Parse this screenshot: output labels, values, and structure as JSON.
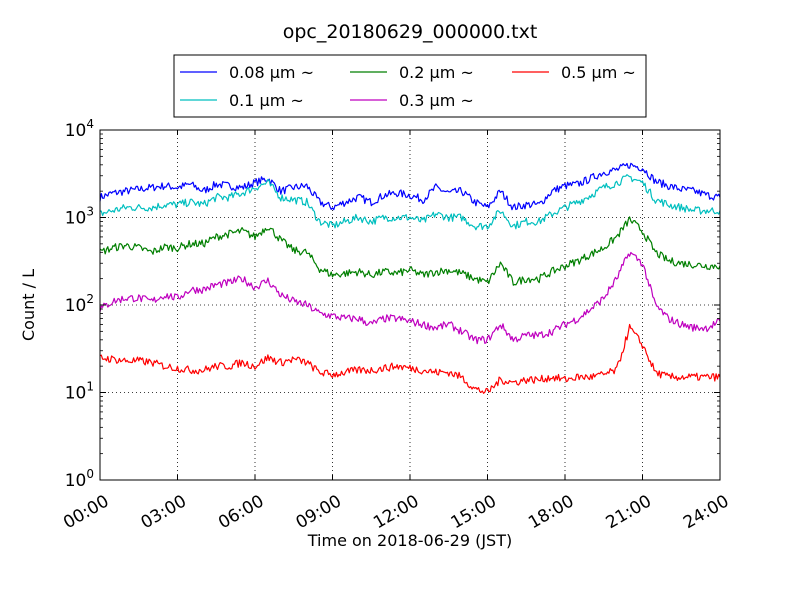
{
  "chart_data": {
    "type": "line",
    "title": "opc_20180629_000000.txt",
    "xlabel": "Time on 2018-06-29 (JST)",
    "ylabel": "Count / L",
    "yscale": "log",
    "xlim": [
      "2018-06-29 00:00",
      "2018-06-30 00:00"
    ],
    "ylim": [
      1,
      10000
    ],
    "grid": true,
    "legend_position": "top-center",
    "x_ticks": [
      "00:00",
      "03:00",
      "06:00",
      "09:00",
      "12:00",
      "15:00",
      "18:00",
      "21:00",
      "24:00"
    ],
    "y_ticks": [
      {
        "value": 1,
        "base": "10",
        "exp": "0"
      },
      {
        "value": 10,
        "base": "10",
        "exp": "1"
      },
      {
        "value": 100,
        "base": "10",
        "exp": "2"
      },
      {
        "value": 1000,
        "base": "10",
        "exp": "3"
      },
      {
        "value": 10000,
        "base": "10",
        "exp": "4"
      }
    ],
    "x": [
      "00:00",
      "00:30",
      "01:00",
      "01:30",
      "02:00",
      "02:30",
      "03:00",
      "03:30",
      "04:00",
      "04:30",
      "05:00",
      "05:30",
      "06:00",
      "06:30",
      "07:00",
      "07:30",
      "08:00",
      "08:30",
      "09:00",
      "09:30",
      "10:00",
      "10:30",
      "11:00",
      "11:30",
      "12:00",
      "12:30",
      "13:00",
      "13:30",
      "14:00",
      "14:30",
      "15:00",
      "15:30",
      "16:00",
      "16:30",
      "17:00",
      "17:30",
      "18:00",
      "18:30",
      "19:00",
      "19:30",
      "20:00",
      "20:30",
      "21:00",
      "21:30",
      "22:00",
      "22:30",
      "23:00",
      "23:30",
      "24:00"
    ],
    "series": [
      {
        "name": "0.08 μm ~",
        "color": "#0000ff",
        "values": [
          1700,
          1900,
          2000,
          2100,
          2200,
          2300,
          2200,
          2400,
          2000,
          2400,
          2300,
          2200,
          2500,
          2800,
          2000,
          2200,
          2300,
          1500,
          1300,
          1500,
          1700,
          1500,
          1800,
          1900,
          1800,
          1600,
          2200,
          1900,
          2000,
          1500,
          1300,
          2000,
          1300,
          1400,
          1400,
          2000,
          2300,
          2400,
          2800,
          3300,
          3500,
          4000,
          3700,
          2600,
          2300,
          2100,
          2000,
          1800,
          1700
        ]
      },
      {
        "name": "0.1 μm ~",
        "color": "#00bfbf",
        "values": [
          1100,
          1200,
          1300,
          1300,
          1300,
          1400,
          1400,
          1500,
          1400,
          1700,
          1700,
          1900,
          2200,
          2500,
          1700,
          1600,
          1500,
          900,
          800,
          900,
          1000,
          900,
          1000,
          1000,
          1000,
          900,
          1100,
          1000,
          1000,
          800,
          800,
          1200,
          800,
          900,
          900,
          1100,
          1300,
          1500,
          1800,
          2200,
          2500,
          2900,
          2500,
          1600,
          1400,
          1300,
          1200,
          1200,
          1200
        ]
      },
      {
        "name": "0.2 μm ~",
        "color": "#007f00",
        "values": [
          400,
          450,
          480,
          450,
          400,
          460,
          450,
          500,
          500,
          600,
          650,
          700,
          600,
          800,
          550,
          420,
          400,
          260,
          220,
          230,
          240,
          220,
          240,
          230,
          250,
          220,
          240,
          250,
          230,
          200,
          180,
          300,
          180,
          200,
          200,
          240,
          280,
          320,
          380,
          450,
          600,
          950,
          700,
          400,
          320,
          300,
          290,
          280,
          280
        ]
      },
      {
        "name": "0.3 μm ~",
        "color": "#bf00bf",
        "values": [
          90,
          110,
          120,
          120,
          110,
          130,
          120,
          150,
          150,
          170,
          180,
          200,
          160,
          190,
          130,
          110,
          100,
          80,
          75,
          70,
          70,
          60,
          70,
          70,
          65,
          60,
          55,
          60,
          50,
          40,
          40,
          60,
          40,
          45,
          45,
          50,
          60,
          70,
          90,
          120,
          200,
          400,
          300,
          100,
          70,
          60,
          55,
          55,
          65
        ]
      },
      {
        "name": "0.5 μm ~",
        "color": "#ff0000",
        "values": [
          25,
          24,
          23,
          23,
          22,
          20,
          19,
          18,
          18,
          20,
          20,
          22,
          20,
          25,
          22,
          24,
          22,
          17,
          16,
          17,
          18,
          18,
          19,
          20,
          19,
          18,
          17,
          17,
          15,
          11,
          10,
          14,
          13,
          14,
          14,
          15,
          14,
          15,
          15,
          16,
          18,
          55,
          35,
          17,
          15,
          15,
          15,
          15,
          15
        ]
      }
    ]
  }
}
